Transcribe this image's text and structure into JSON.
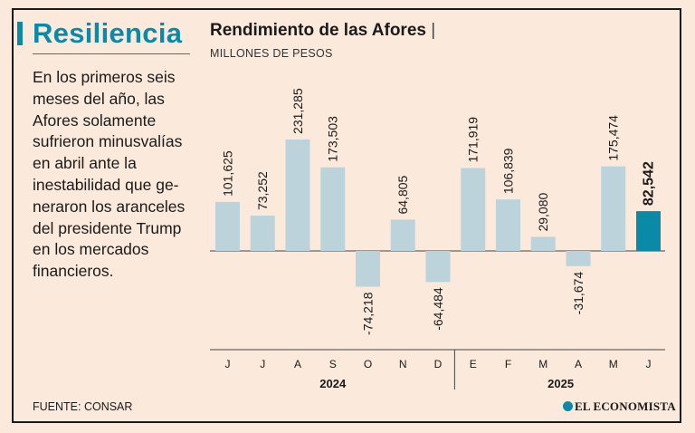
{
  "sidebar": {
    "kicker": "Resiliencia",
    "body_lines": [
      "En los primeros seis",
      "meses del año, las",
      "Afores solamente",
      "sufrieron minusvalías",
      "en abril ante la",
      "inestabilidad que ge-",
      "neraron los aranceles",
      "del presidente Trump",
      "en los mercados",
      "financieros."
    ]
  },
  "header": {
    "title": "Rendimiento de las Afores",
    "separator": "|",
    "subtitle": "MILLONES DE PESOS"
  },
  "footer": {
    "source": "FUENTE: CONSAR",
    "brand": "EL ECONOMISTA"
  },
  "colors": {
    "accent": "#0b8aa8",
    "bar": "#bcd3dc",
    "highlight_bar": "#0b8aa8",
    "background": "#fbe9dc"
  },
  "chart_data": {
    "type": "bar",
    "categories": [
      "J",
      "J",
      "A",
      "S",
      "O",
      "N",
      "D",
      "E",
      "F",
      "M",
      "A",
      "M",
      "J"
    ],
    "values": [
      101625,
      73252,
      231285,
      173503,
      -74218,
      64805,
      -64484,
      171919,
      106839,
      29080,
      -31674,
      175474,
      82542
    ],
    "labels": [
      "101,625",
      "73,252",
      "231,285",
      "173,503",
      "-74,218",
      "64,805",
      "-64,484",
      "171,919",
      "106,839",
      "29,080",
      "-31,674",
      "175,474",
      "82,542"
    ],
    "highlight_index": 12,
    "groups": [
      {
        "label": "2024",
        "start": 0,
        "end": 6
      },
      {
        "label": "2025",
        "start": 7,
        "end": 12
      }
    ]
  }
}
